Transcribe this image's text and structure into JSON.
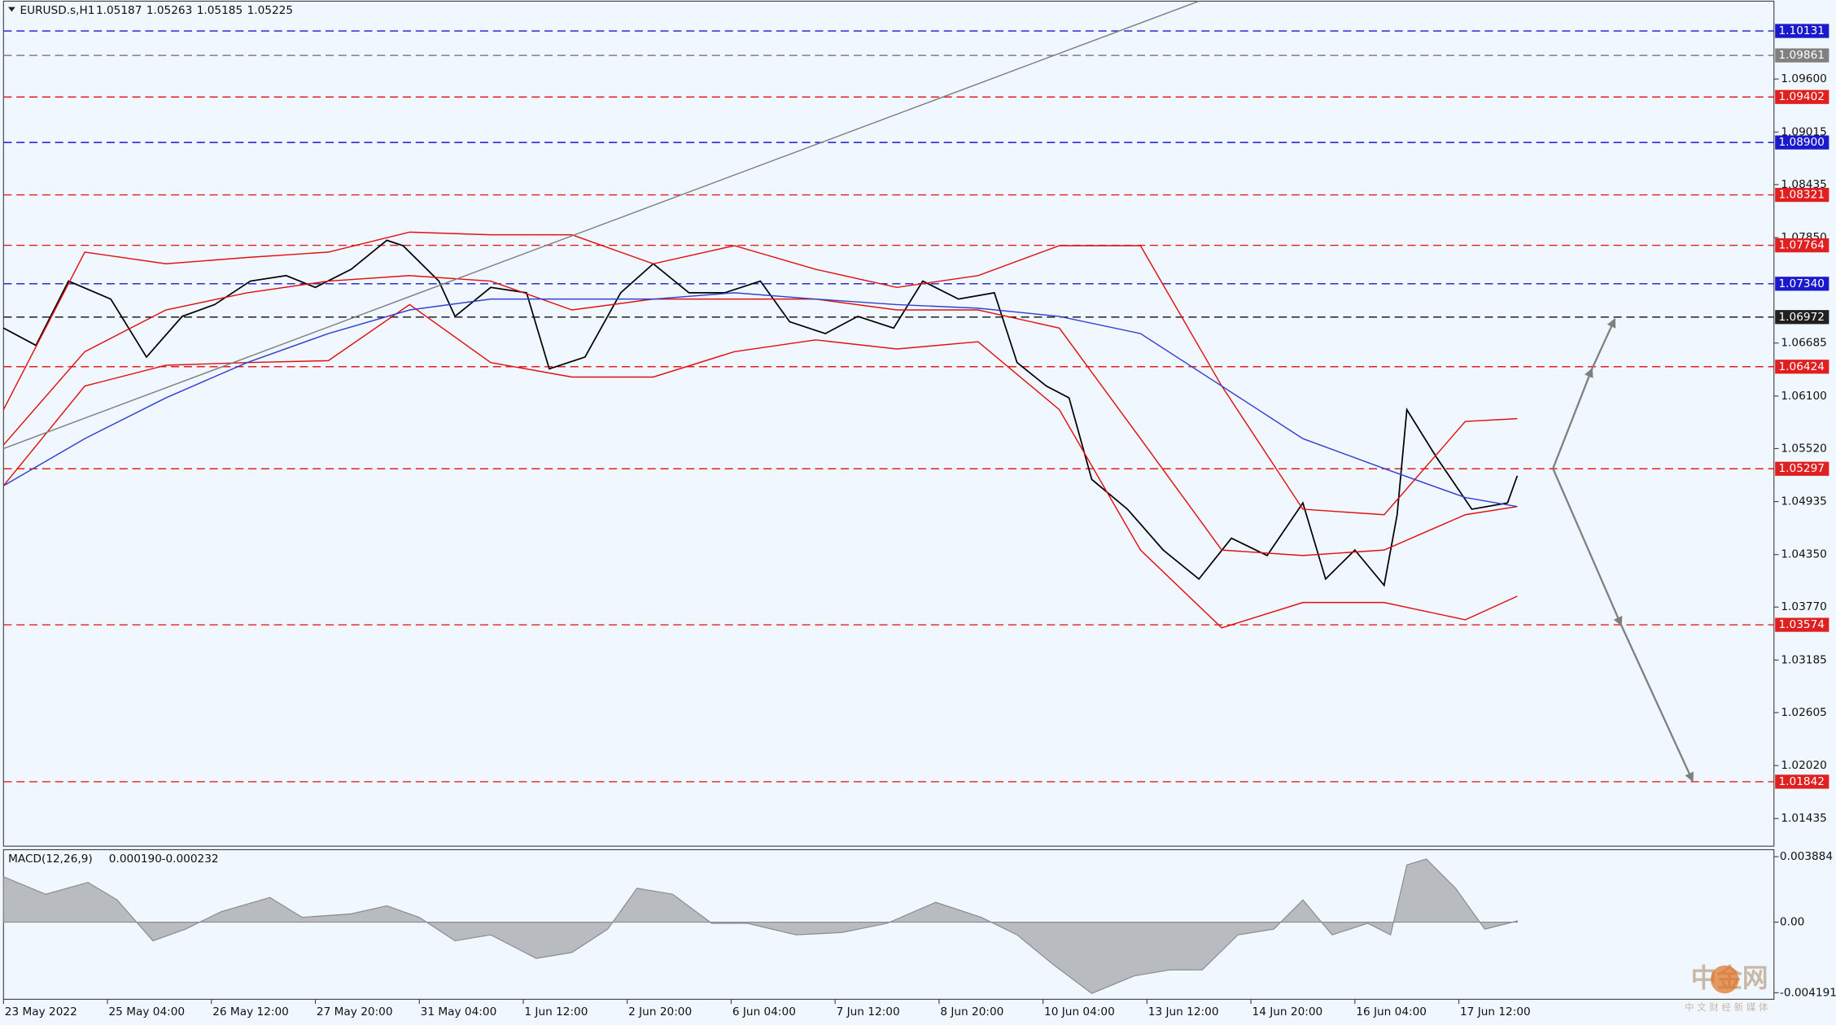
{
  "chart_data": [
    {
      "type": "line",
      "title": "EURUSD.s,H1",
      "ohlc": [
        1.05187,
        1.05263,
        1.05185,
        1.05225
      ],
      "xlim": [
        0,
        545
      ],
      "ylim": [
        1.0113,
        1.1046
      ],
      "xticks": [
        {
          "value": 0,
          "label": "23 May 2022"
        },
        {
          "value": 32,
          "label": "25 May 04:00"
        },
        {
          "value": 64,
          "label": "26 May 12:00"
        },
        {
          "value": 96,
          "label": "27 May 20:00"
        },
        {
          "value": 128,
          "label": "31 May 04:00"
        },
        {
          "value": 160,
          "label": "1 Jun 12:00"
        },
        {
          "value": 192,
          "label": "2 Jun 20:00"
        },
        {
          "value": 224,
          "label": "6 Jun 04:00"
        },
        {
          "value": 256,
          "label": "7 Jun 12:00"
        },
        {
          "value": 288,
          "label": "8 Jun 20:00"
        },
        {
          "value": 320,
          "label": "10 Jun 04:00"
        },
        {
          "value": 352,
          "label": "13 Jun 12:00"
        },
        {
          "value": 384,
          "label": "14 Jun 20:00"
        },
        {
          "value": 416,
          "label": "16 Jun 04:00"
        },
        {
          "value": 448,
          "label": "17 Jun 12:00"
        }
      ],
      "yticks": [
        {
          "value": 1.096,
          "label": "1.09600"
        },
        {
          "value": 1.09015,
          "label": "1.09015"
        },
        {
          "value": 1.08435,
          "label": "1.08435"
        },
        {
          "value": 1.0785,
          "label": "1.07850"
        },
        {
          "value": 1.06685,
          "label": "1.06685"
        },
        {
          "value": 1.061,
          "label": "1.06100"
        },
        {
          "value": 1.0552,
          "label": "1.05520"
        },
        {
          "value": 1.04935,
          "label": "1.04935"
        },
        {
          "value": 1.0435,
          "label": "1.04350"
        },
        {
          "value": 1.0377,
          "label": "1.03770"
        },
        {
          "value": 1.03185,
          "label": "1.03185"
        },
        {
          "value": 1.02605,
          "label": "1.02605"
        },
        {
          "value": 1.0202,
          "label": "1.02020"
        },
        {
          "value": 1.01435,
          "label": "1.01435"
        }
      ],
      "levels": [
        {
          "value": 1.10131,
          "label": "1.10131",
          "color": "#1a1acc"
        },
        {
          "value": 1.09861,
          "label": "1.09861",
          "color": "#808080"
        },
        {
          "value": 1.09402,
          "label": "1.09402",
          "color": "#e02020"
        },
        {
          "value": 1.089,
          "label": "1.08900",
          "color": "#1a1acc"
        },
        {
          "value": 1.08321,
          "label": "1.08321",
          "color": "#e02020"
        },
        {
          "value": 1.07764,
          "label": "1.07764",
          "color": "#e02020"
        },
        {
          "value": 1.0734,
          "label": "1.07340",
          "color": "#1a1acc"
        },
        {
          "value": 1.06972,
          "label": "1.06972",
          "color": "#202020"
        },
        {
          "value": 1.06424,
          "label": "1.06424",
          "color": "#e02020"
        },
        {
          "value": 1.05297,
          "label": "1.05297",
          "color": "#e02020"
        },
        {
          "value": 1.03574,
          "label": "1.03574",
          "color": "#e02020"
        },
        {
          "value": 1.01842,
          "label": "1.01842",
          "color": "#e02020"
        }
      ],
      "series": [
        {
          "color": "#000000",
          "x": [
            0,
            10,
            20,
            33,
            44,
            55,
            65,
            76,
            87,
            96,
            107,
            118,
            123,
            134,
            139,
            150,
            161,
            168,
            179,
            190,
            200,
            211,
            222,
            233,
            242,
            253,
            263,
            274,
            283,
            294,
            305,
            312,
            321,
            328,
            335,
            346,
            357,
            368,
            378,
            389,
            400,
            407,
            416,
            425,
            429,
            432,
            441,
            452,
            463,
            466
          ],
          "values": [
            1.0685,
            1.0666,
            1.0737,
            1.0717,
            1.0653,
            1.0698,
            1.0711,
            1.0737,
            1.0743,
            1.073,
            1.075,
            1.0782,
            1.0776,
            1.0737,
            1.0698,
            1.073,
            1.0724,
            1.064,
            1.0653,
            1.0724,
            1.0756,
            1.0724,
            1.0724,
            1.0737,
            1.0692,
            1.0679,
            1.0698,
            1.0685,
            1.0737,
            1.0717,
            1.0724,
            1.0647,
            1.0621,
            1.0608,
            1.0518,
            1.0485,
            1.044,
            1.0408,
            1.0453,
            1.0434,
            1.0492,
            1.0408,
            1.044,
            1.0401,
            1.0479,
            1.0595,
            1.0543,
            1.0485,
            1.0492,
            1.0522
          ]
        },
        {
          "color": "#e01010",
          "x": [
            0,
            25,
            50,
            75,
            100,
            125,
            150,
            175,
            200,
            225,
            250,
            275,
            300,
            325,
            350,
            375,
            400,
            425,
            450,
            466
          ],
          "values": [
            1.0595,
            1.0769,
            1.0756,
            1.0763,
            1.0769,
            1.0791,
            1.0788,
            1.0788,
            1.0756,
            1.0776,
            1.075,
            1.073,
            1.0743,
            1.0776,
            1.0776,
            1.0621,
            1.0485,
            1.0479,
            1.0582,
            1.0585
          ]
        },
        {
          "color": "#e01010",
          "x": [
            0,
            25,
            50,
            75,
            100,
            125,
            150,
            175,
            200,
            225,
            250,
            275,
            300,
            325,
            350,
            375,
            400,
            425,
            450,
            466
          ],
          "values": [
            1.0556,
            1.0659,
            1.0705,
            1.0724,
            1.0737,
            1.0743,
            1.0737,
            1.0705,
            1.0717,
            1.0717,
            1.0717,
            1.0705,
            1.0705,
            1.0685,
            1.0563,
            1.044,
            1.0434,
            1.044,
            1.0479,
            1.0488
          ]
        },
        {
          "color": "#e01010",
          "x": [
            0,
            25,
            50,
            75,
            100,
            125,
            150,
            175,
            200,
            225,
            250,
            275,
            300,
            325,
            350,
            375,
            400,
            425,
            450,
            466
          ],
          "values": [
            1.0511,
            1.0621,
            1.0644,
            1.0647,
            1.0649,
            1.0711,
            1.0647,
            1.0631,
            1.0631,
            1.0659,
            1.0672,
            1.0662,
            1.067,
            1.0595,
            1.044,
            1.0354,
            1.0382,
            1.0382,
            1.0363,
            1.0389
          ]
        },
        {
          "color": "#3040d0",
          "x": [
            0,
            25,
            50,
            75,
            100,
            125,
            150,
            175,
            200,
            225,
            250,
            275,
            300,
            325,
            350,
            375,
            400,
            425,
            450,
            466
          ],
          "values": [
            1.0511,
            1.0563,
            1.0608,
            1.0647,
            1.0679,
            1.0705,
            1.0717,
            1.0717,
            1.0717,
            1.0724,
            1.0717,
            1.0711,
            1.0707,
            1.0698,
            1.0679,
            1.0621,
            1.0563,
            1.053,
            1.0498,
            1.0488
          ]
        },
        {
          "color": "#808080",
          "x": [
            0,
            368
          ],
          "values": [
            1.0552,
            1.1046
          ]
        }
      ],
      "arrows": [
        {
          "color": "#808080",
          "x": [
            477,
            489,
            496
          ],
          "values": [
            1.053,
            1.064,
            1.0695
          ]
        },
        {
          "color": "#808080",
          "x": [
            477,
            498,
            520
          ],
          "values": [
            1.053,
            1.0357,
            1.0185
          ]
        }
      ]
    },
    {
      "type": "area",
      "title": "MACD(12,26,9)",
      "readings": [
        {
          "value": 0.00019,
          "label": "0.000190"
        },
        {
          "value": -0.000232,
          "label": "-0.000232"
        }
      ],
      "color": "#8a8a8a",
      "xlim": [
        0,
        545
      ],
      "ylim": [
        -0.00458,
        0.0043
      ],
      "yticks": [
        {
          "value": 0.003884,
          "label": "0.003884"
        },
        {
          "value": 0,
          "label": "0.00"
        },
        {
          "value": -0.004191,
          "label": "-0.004191"
        }
      ],
      "x": [
        0,
        13,
        26,
        35,
        46,
        56,
        67,
        82,
        92,
        107,
        118,
        128,
        139,
        150,
        164,
        175,
        186,
        195,
        206,
        218,
        229,
        244,
        258,
        272,
        287,
        301,
        312,
        323,
        335,
        348,
        359,
        369,
        380,
        391,
        400,
        409,
        420,
        427,
        432,
        438,
        447,
        456,
        466
      ],
      "values": [
        0.0027,
        0.00166,
        0.00236,
        0.00132,
        -0.00111,
        -0.00042,
        0.00062,
        0.00146,
        0.00028,
        0.00049,
        0.00097,
        0.00028,
        -0.00111,
        -0.00076,
        -0.00215,
        -0.0018,
        -0.00042,
        0.00201,
        0.00166,
        -7e-05,
        -7e-05,
        -0.00076,
        -0.00062,
        -7e-05,
        0.00118,
        0.00028,
        -0.00076,
        -0.0025,
        -0.00423,
        -0.00319,
        -0.00284,
        -0.00284,
        -0.00076,
        -0.00042,
        0.00132,
        -0.00076,
        -7e-05,
        -0.00076,
        0.0034,
        0.00375,
        0.00201,
        -0.00042,
        7e-05
      ]
    }
  ],
  "watermark": {
    "title": "中金网",
    "subtitle": "中 文 财 经 新 媒 体"
  }
}
